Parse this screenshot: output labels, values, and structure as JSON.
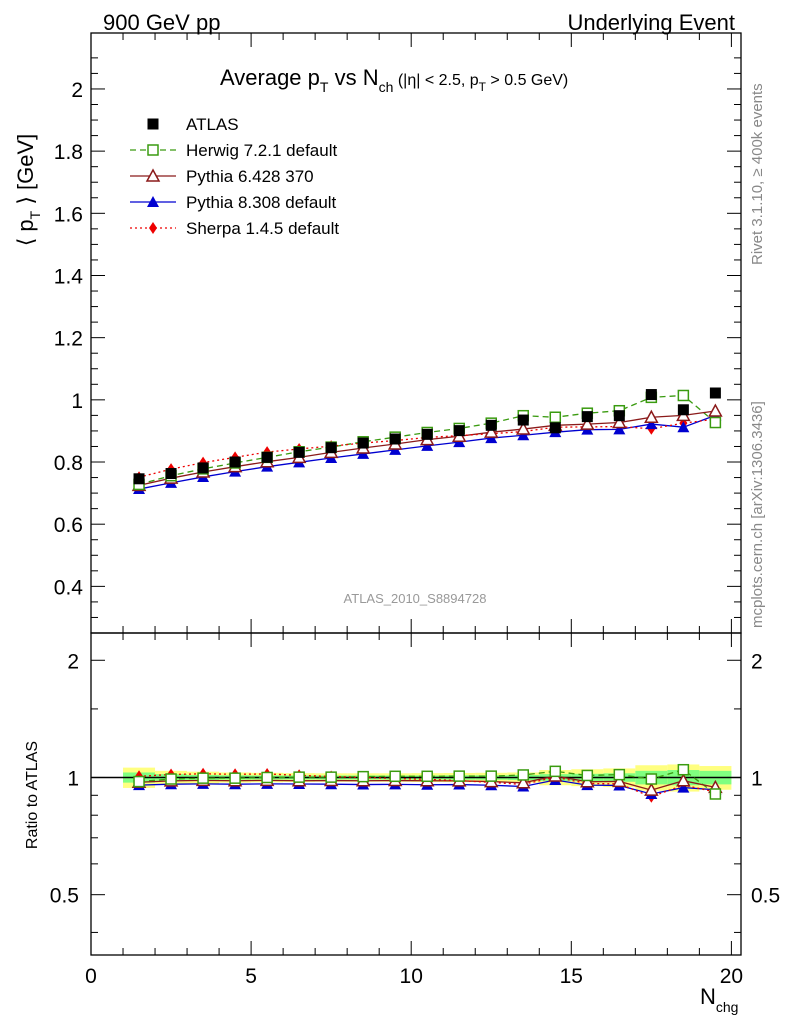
{
  "header": {
    "left": "900 GeV pp",
    "right": "Underlying Event"
  },
  "side_text": {
    "rivet": "Rivet 3.1.10, ≥ 400k events",
    "mcplots": "mcplots.cern.ch [arXiv:1306.3436]"
  },
  "chart_data": [
    {
      "type": "line",
      "panel": "main",
      "title": "Average p_T vs N_ch (|η| < 2.5, p_T > 0.5 GeV)",
      "title_parts": {
        "a": "Average p",
        "a_sub": "T",
        "b": " vs N",
        "b_sub": "ch",
        "c": " (|η| < 2.5, p",
        "c_sub": "T",
        "d": " > 0.5 GeV)"
      },
      "ylabel": "⟨ p_T ⟩ [GeV]",
      "ylabel_parts": {
        "a": "⟨ p",
        "sub": "T",
        "b": " ⟩ [GeV]"
      },
      "analysis_label": "ATLAS_2010_S8894728",
      "xlim": [
        0,
        20.3
      ],
      "ylim": [
        0.25,
        2.18
      ],
      "yticks": [
        0.4,
        0.6,
        0.8,
        1.0,
        1.2,
        1.4,
        1.6,
        1.8,
        2.0
      ],
      "ytick_labels": [
        "0.4",
        "0.6",
        "0.8",
        "1",
        "1.2",
        "1.4",
        "1.6",
        "1.8",
        "2"
      ],
      "x": [
        1.5,
        2.5,
        3.5,
        4.5,
        5.5,
        6.5,
        7.5,
        8.5,
        9.5,
        10.5,
        11.5,
        12.5,
        13.5,
        14.5,
        15.5,
        16.5,
        17.5,
        18.5,
        19.5
      ],
      "series": [
        {
          "name": "ATLAS",
          "color": "#000000",
          "marker": "square-filled",
          "line": "none",
          "values": [
            0.746,
            0.763,
            0.781,
            0.8,
            0.815,
            0.831,
            0.846,
            0.861,
            0.874,
            0.889,
            0.901,
            0.918,
            0.935,
            0.91,
            0.946,
            0.949,
            1.017,
            0.968,
            1.022
          ]
        },
        {
          "name": "Herwig 7.2.1 default",
          "color": "#3a9b10",
          "marker": "square-open",
          "line": "dashed",
          "values": [
            0.728,
            0.756,
            0.778,
            0.797,
            0.815,
            0.833,
            0.848,
            0.865,
            0.88,
            0.895,
            0.908,
            0.925,
            0.949,
            0.944,
            0.957,
            0.965,
            1.008,
            1.014,
            0.927
          ]
        },
        {
          "name": "Pythia 6.428 370",
          "color": "#8b1a1a",
          "marker": "triangle-open",
          "line": "solid",
          "values": [
            0.725,
            0.748,
            0.768,
            0.785,
            0.801,
            0.815,
            0.831,
            0.845,
            0.858,
            0.872,
            0.883,
            0.896,
            0.906,
            0.918,
            0.922,
            0.927,
            0.944,
            0.95,
            0.964
          ]
        },
        {
          "name": "Pythia 8.308 default",
          "color": "#0000d0",
          "marker": "triangle-filled",
          "line": "solid",
          "values": [
            0.713,
            0.733,
            0.752,
            0.769,
            0.785,
            0.799,
            0.813,
            0.826,
            0.839,
            0.852,
            0.864,
            0.877,
            0.886,
            0.896,
            0.904,
            0.905,
            0.922,
            0.912,
            0.95
          ]
        },
        {
          "name": "Sherpa 1.4.5 default",
          "color": "#ee0000",
          "marker": "diamond-filled",
          "line": "dotted",
          "values": [
            0.751,
            0.777,
            0.798,
            0.815,
            0.832,
            0.842,
            0.851,
            0.861,
            0.869,
            0.879,
            0.885,
            0.891,
            0.898,
            0.912,
            0.913,
            0.914,
            0.907,
            0.925,
            0.938
          ]
        }
      ]
    },
    {
      "type": "line",
      "panel": "ratio",
      "ylabel": "Ratio to ATLAS",
      "xlabel": "N_chg",
      "xlabel_parts": {
        "a": "N",
        "sub": "chg"
      },
      "xlim": [
        0,
        20.3
      ],
      "ylim": [
        0.35,
        2.35
      ],
      "yscale": "log",
      "yticks": [
        0.5,
        1,
        2
      ],
      "ytick_labels": [
        "0.5",
        "1",
        "2"
      ],
      "xticks": [
        0,
        5,
        10,
        15,
        20
      ],
      "xtick_labels": [
        "0",
        "5",
        "10",
        "15",
        "20"
      ],
      "x": [
        1.5,
        2.5,
        3.5,
        4.5,
        5.5,
        6.5,
        7.5,
        8.5,
        9.5,
        10.5,
        11.5,
        12.5,
        13.5,
        14.5,
        15.5,
        16.5,
        17.5,
        18.5,
        19.5
      ],
      "band_total_halfwidth": [
        0.06,
        0.04,
        0.035,
        0.03,
        0.028,
        0.026,
        0.025,
        0.025,
        0.025,
        0.026,
        0.027,
        0.028,
        0.03,
        0.045,
        0.05,
        0.055,
        0.075,
        0.08,
        0.07
      ],
      "band_stat_halfwidth": [
        0.03,
        0.02,
        0.015,
        0.013,
        0.012,
        0.012,
        0.012,
        0.012,
        0.012,
        0.012,
        0.013,
        0.013,
        0.015,
        0.02,
        0.022,
        0.025,
        0.04,
        0.045,
        0.04
      ],
      "band_colors": {
        "total": "#ffff80",
        "stat": "#80ff80"
      },
      "series": [
        {
          "name": "Herwig 7.2.1 default",
          "color": "#3a9b10",
          "marker": "square-open",
          "line": "dashed",
          "values": [
            0.976,
            0.991,
            0.996,
            0.996,
            1.0,
            1.002,
            1.002,
            1.005,
            1.007,
            1.007,
            1.008,
            1.008,
            1.015,
            1.037,
            1.012,
            1.017,
            0.991,
            1.047,
            0.907
          ]
        },
        {
          "name": "Pythia 6.428 370",
          "color": "#8b1a1a",
          "marker": "triangle-open",
          "line": "solid",
          "values": [
            0.972,
            0.98,
            0.983,
            0.981,
            0.983,
            0.981,
            0.982,
            0.981,
            0.982,
            0.981,
            0.98,
            0.976,
            0.969,
            1.009,
            0.975,
            0.977,
            0.928,
            0.981,
            0.943
          ]
        },
        {
          "name": "Pythia 8.308 default",
          "color": "#0000d0",
          "marker": "triangle-filled",
          "line": "solid",
          "values": [
            0.956,
            0.961,
            0.963,
            0.961,
            0.963,
            0.962,
            0.961,
            0.959,
            0.96,
            0.958,
            0.959,
            0.955,
            0.948,
            0.985,
            0.956,
            0.954,
            0.907,
            0.942,
            0.93
          ]
        },
        {
          "name": "Sherpa 1.4.5 default",
          "color": "#ee0000",
          "marker": "diamond-filled",
          "line": "dotted",
          "values": [
            1.007,
            1.018,
            1.022,
            1.019,
            1.021,
            1.013,
            1.006,
            1.0,
            0.994,
            0.989,
            0.982,
            0.971,
            0.96,
            1.002,
            0.965,
            0.963,
            0.892,
            0.956,
            0.918
          ]
        }
      ]
    }
  ]
}
